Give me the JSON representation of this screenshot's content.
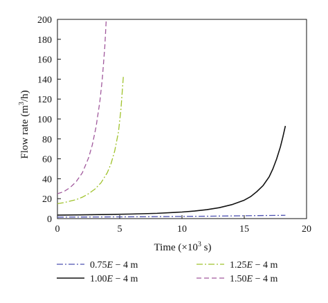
{
  "chart_data": {
    "type": "line",
    "title": "",
    "xlabel": "Time (×10",
    "xlabel_sup": "3",
    "xlabel_tail": " s)",
    "ylabel": "Flow rate (m",
    "ylabel_sup": "3",
    "ylabel_tail": "/h)",
    "xlim": [
      0,
      20
    ],
    "ylim": [
      0,
      200
    ],
    "x_ticks": [
      0,
      5,
      10,
      15,
      20
    ],
    "y_ticks": [
      0,
      20,
      40,
      60,
      80,
      100,
      120,
      140,
      160,
      180,
      200
    ],
    "grid": false,
    "legend_position": "below",
    "series": [
      {
        "name": "0.75E − 4 m",
        "legend_parts": [
          "0.75",
          "E",
          " − 4 m"
        ],
        "color": "#4a4fb0",
        "style": "dashdot",
        "x": [
          0,
          2,
          4,
          6,
          8,
          10,
          12,
          14,
          16,
          18.3
        ],
        "y": [
          1.5,
          1.6,
          1.7,
          1.8,
          2.0,
          2.2,
          2.4,
          2.7,
          3.0,
          3.3
        ]
      },
      {
        "name": "1.00E − 4 m",
        "legend_parts": [
          "1.00",
          "E",
          " − 4 m"
        ],
        "color": "#111111",
        "style": "solid",
        "x": [
          0,
          2,
          4,
          6,
          8,
          10,
          11,
          12,
          13,
          14,
          15,
          15.5,
          16,
          16.5,
          17,
          17.3,
          17.6,
          17.9,
          18.1,
          18.3
        ],
        "y": [
          3.5,
          3.8,
          4.1,
          4.6,
          5.3,
          6.6,
          7.6,
          9.0,
          11.0,
          14.0,
          18.5,
          22,
          27,
          33,
          42,
          50,
          60,
          72,
          82,
          93
        ]
      },
      {
        "name": "1.25E − 4 m",
        "legend_parts": [
          "1.25",
          "E",
          " − 4 m"
        ],
        "color": "#9fc22a",
        "style": "dashdot",
        "x": [
          0,
          0.5,
          1.0,
          1.5,
          2.0,
          2.5,
          3.0,
          3.5,
          4.0,
          4.3,
          4.6,
          4.9,
          5.1,
          5.3
        ],
        "y": [
          15,
          16,
          17.5,
          19,
          21.5,
          25,
          29.5,
          36,
          46,
          55,
          68,
          87,
          110,
          144
        ]
      },
      {
        "name": "1.50E − 4 m",
        "legend_parts": [
          "1.50",
          "E",
          " − 4 m"
        ],
        "color": "#a0589c",
        "style": "dashed",
        "x": [
          0,
          0.5,
          1.0,
          1.5,
          2.0,
          2.5,
          2.8,
          3.1,
          3.4,
          3.6,
          3.8,
          3.92
        ],
        "y": [
          25,
          27,
          31,
          37,
          46,
          61,
          74,
          92,
          117,
          140,
          172,
          200
        ]
      }
    ]
  }
}
